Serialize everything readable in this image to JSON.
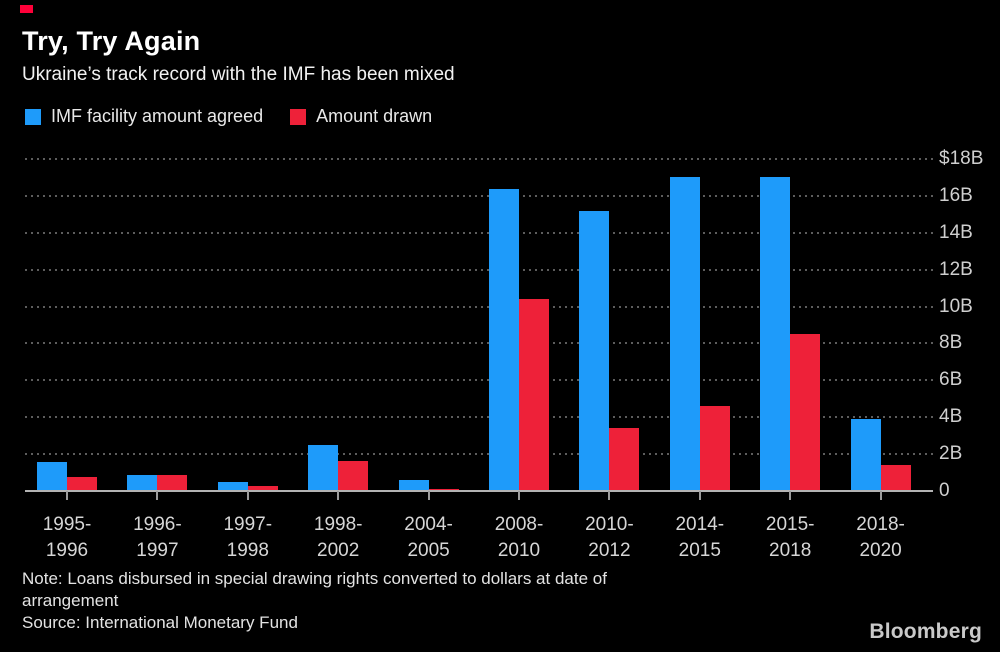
{
  "brand": {
    "mark_color": "#ff0039",
    "logo": "Bloomberg"
  },
  "header": {
    "title": "Try, Try Again",
    "subtitle": "Ukraine’s track record with the IMF has been mixed"
  },
  "legend": [
    {
      "label": "IMF facility amount agreed",
      "color": "#1e9bfa"
    },
    {
      "label": "Amount drawn",
      "color": "#ee2139"
    }
  ],
  "chart_data": {
    "type": "bar",
    "title": "Try, Try Again",
    "subtitle": "Ukraine’s track record with the IMF has been mixed",
    "unit": "USD billions",
    "categories": [
      "1995-1996",
      "1996-1997",
      "1997-1998",
      "1998-2002",
      "2004-2005",
      "2008-2010",
      "2010-2012",
      "2014-2015",
      "2015-2018",
      "2018-2020"
    ],
    "series": [
      {
        "name": "IMF facility amount agreed",
        "color": "#1e9bfa",
        "values": [
          1.55,
          0.85,
          0.5,
          2.5,
          0.6,
          16.4,
          15.2,
          17.0,
          17.0,
          3.9
        ]
      },
      {
        "name": "Amount drawn",
        "color": "#ee2139",
        "values": [
          0.78,
          0.85,
          0.25,
          1.6,
          0.1,
          10.4,
          3.4,
          4.6,
          8.5,
          1.4
        ]
      }
    ],
    "ylim": [
      0,
      18
    ],
    "yticks": [
      {
        "label": "$18B",
        "value": 18
      },
      {
        "label": "16B",
        "value": 16
      },
      {
        "label": "14B",
        "value": 14
      },
      {
        "label": "12B",
        "value": 12
      },
      {
        "label": "10B",
        "value": 10
      },
      {
        "label": "8B",
        "value": 8
      },
      {
        "label": "6B",
        "value": 6
      },
      {
        "label": "4B",
        "value": 4
      },
      {
        "label": "2B",
        "value": 2
      },
      {
        "label": "0",
        "value": 0
      }
    ],
    "grid": "dotted-horizontal",
    "legend_position": "top-left",
    "ylabel_position": "right"
  },
  "footer": {
    "note_line1": "Note: Loans disbursed in special drawing rights converted to dollars at date of",
    "note_line2": "arrangement",
    "source": "Source: International Monetary Fund",
    "logo": "Bloomberg"
  }
}
